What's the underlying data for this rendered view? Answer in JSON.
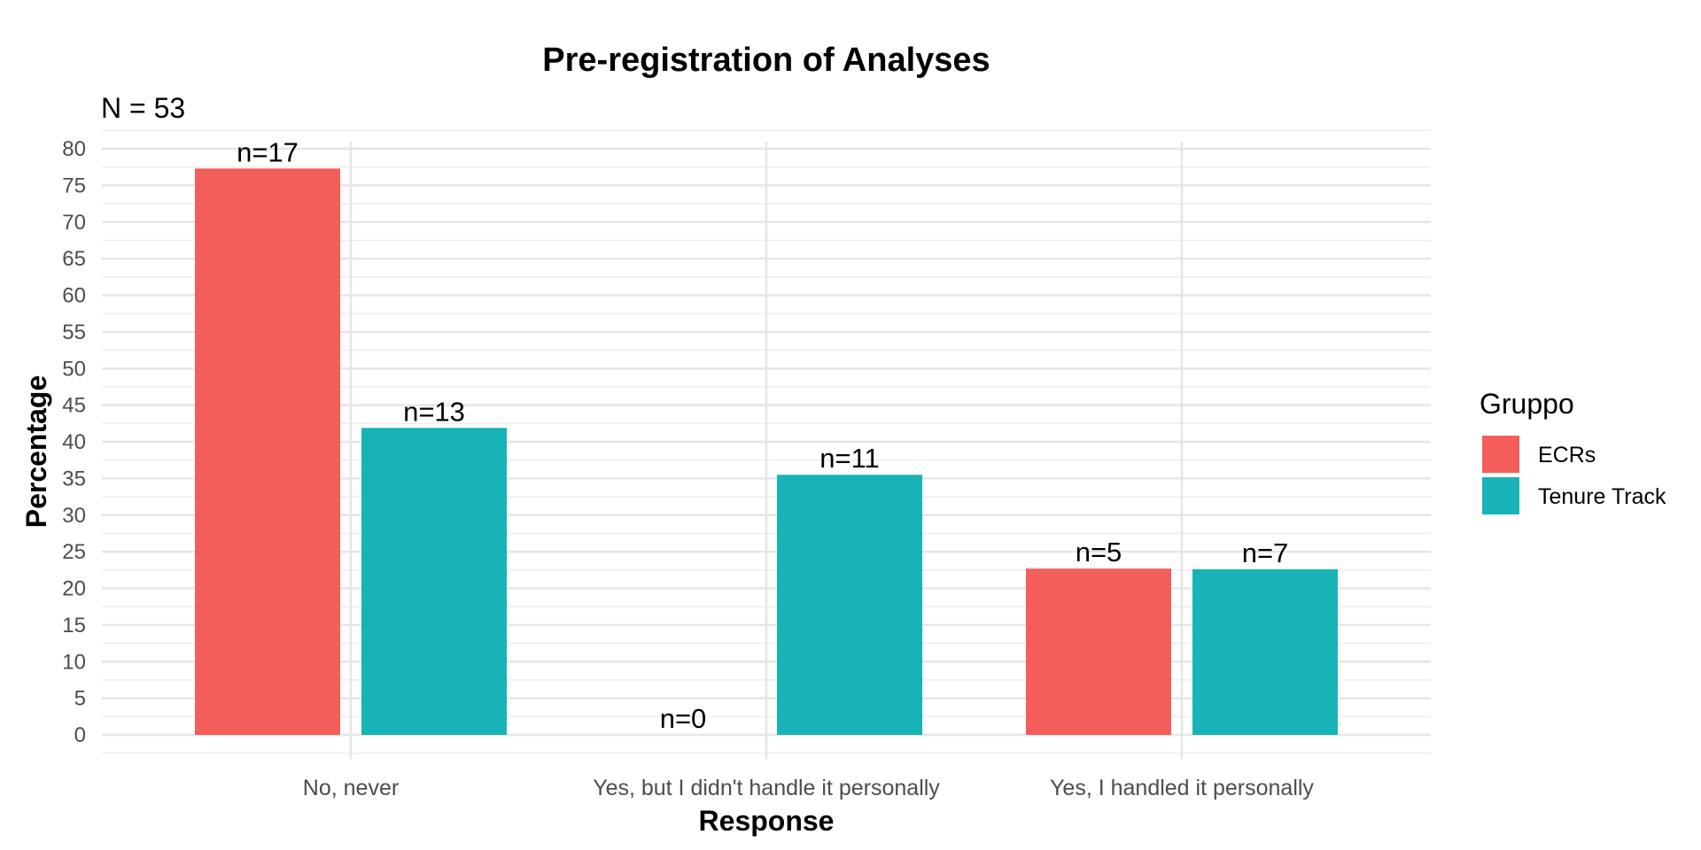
{
  "chart_data": {
    "type": "bar",
    "title": "Pre-registration of Analyses",
    "subtitle": "N = 53",
    "xlabel": "Response",
    "ylabel": "Percentage",
    "categories": [
      "No, never",
      "Yes, but I didn't handle it personally",
      "Yes, I handled it personally"
    ],
    "series": [
      {
        "name": "ECRs",
        "color": "#F35E5A",
        "values": [
          77.3,
          0,
          22.7
        ],
        "labels": [
          "n=17",
          "n=0",
          "n=5"
        ]
      },
      {
        "name": "Tenure Track",
        "color": "#17B3B7",
        "values": [
          41.9,
          35.5,
          22.6
        ],
        "labels": [
          "n=13",
          "n=11",
          "n=7"
        ]
      }
    ],
    "ylim": [
      0,
      80
    ],
    "yticks": [
      "0",
      "5",
      "10",
      "15",
      "20",
      "25",
      "30",
      "35",
      "40",
      "45",
      "50",
      "55",
      "60",
      "65",
      "70",
      "75",
      "80"
    ],
    "grid": true,
    "legend": {
      "title": "Gruppo",
      "position": "right"
    }
  }
}
